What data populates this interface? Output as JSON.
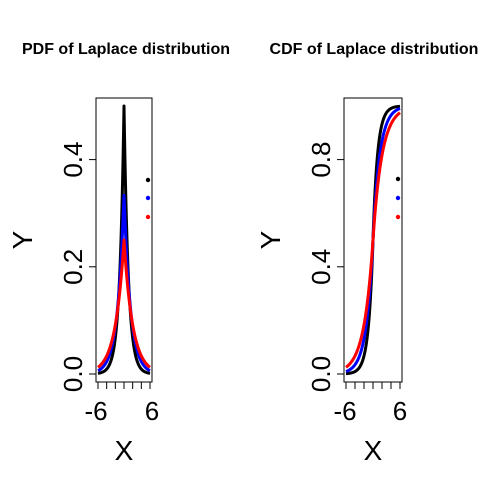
{
  "chart_data": [
    {
      "type": "line",
      "title": "PDF of Laplace distribution",
      "xlabel": "X",
      "ylabel": "Y",
      "xlim": [
        -6,
        6
      ],
      "ylim": [
        0,
        0.5
      ],
      "x_ticks": [
        "-6",
        "6"
      ],
      "y_ticks": [
        "0.0",
        "0.2",
        "0.4"
      ],
      "y_tick_values": [
        0,
        0.2,
        0.4
      ],
      "minor_x_tick_values": [
        -6,
        -4,
        -2,
        0,
        2,
        4,
        6
      ],
      "x_range": [
        -6,
        6
      ],
      "function": "pdf",
      "location": 0,
      "series": [
        {
          "scale": 1,
          "color": "#000000",
          "peak": 0.5
        },
        {
          "scale": 1.5,
          "color": "#0000ff",
          "peak": 0.333
        },
        {
          "scale": 2,
          "color": "#ff0000",
          "peak": 0.25
        }
      ],
      "legend": "right",
      "grid": false
    },
    {
      "type": "line",
      "title": "CDF of Laplace distribution",
      "xlabel": "X",
      "ylabel": "Y",
      "xlim": [
        -6,
        6
      ],
      "ylim": [
        0,
        1
      ],
      "x_ticks": [
        "-6",
        "6"
      ],
      "y_ticks": [
        "0.0",
        "0.4",
        "0.8"
      ],
      "y_tick_values": [
        0,
        0.4,
        0.8
      ],
      "minor_x_tick_values": [
        -6,
        -4,
        -2,
        0,
        2,
        4,
        6
      ],
      "x_range": [
        -6,
        6
      ],
      "function": "cdf",
      "location": 0,
      "series": [
        {
          "scale": 1,
          "color": "#000000"
        },
        {
          "scale": 1.5,
          "color": "#0000ff"
        },
        {
          "scale": 2,
          "color": "#ff0000"
        }
      ],
      "legend": "right",
      "grid": false
    }
  ]
}
